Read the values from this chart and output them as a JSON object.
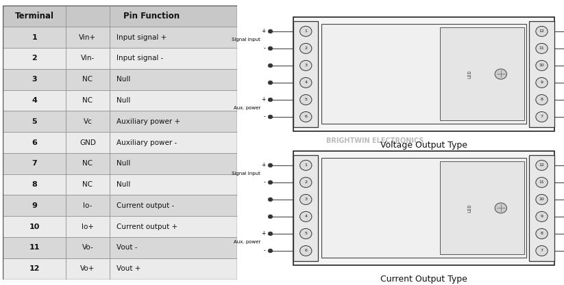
{
  "rows": [
    [
      "1",
      "Vin+",
      "Input signal +"
    ],
    [
      "2",
      "Vin-",
      "Input signal -"
    ],
    [
      "3",
      "NC",
      "Null"
    ],
    [
      "4",
      "NC",
      "Null"
    ],
    [
      "5",
      "Vc",
      "Auxiliary power +"
    ],
    [
      "6",
      "GND",
      "Auxiliary power -"
    ],
    [
      "7",
      "NC",
      "Null"
    ],
    [
      "8",
      "NC",
      "Null"
    ],
    [
      "9",
      "Io-",
      "Current output -"
    ],
    [
      "10",
      "Io+",
      "Current output +"
    ],
    [
      "11",
      "Vo-",
      "Vout -"
    ],
    [
      "12",
      "Vo+",
      "Vout +"
    ]
  ],
  "bg_header": "#c8c8c8",
  "bg_row_odd": "#d8d8d8",
  "bg_row_even": "#ebebeb",
  "text_color": "#111111",
  "watermark": "BRIGHTWIN ELECTRONICS",
  "diagram1_title": "Voltage Output Type",
  "diagram2_title": "Current Output Type"
}
